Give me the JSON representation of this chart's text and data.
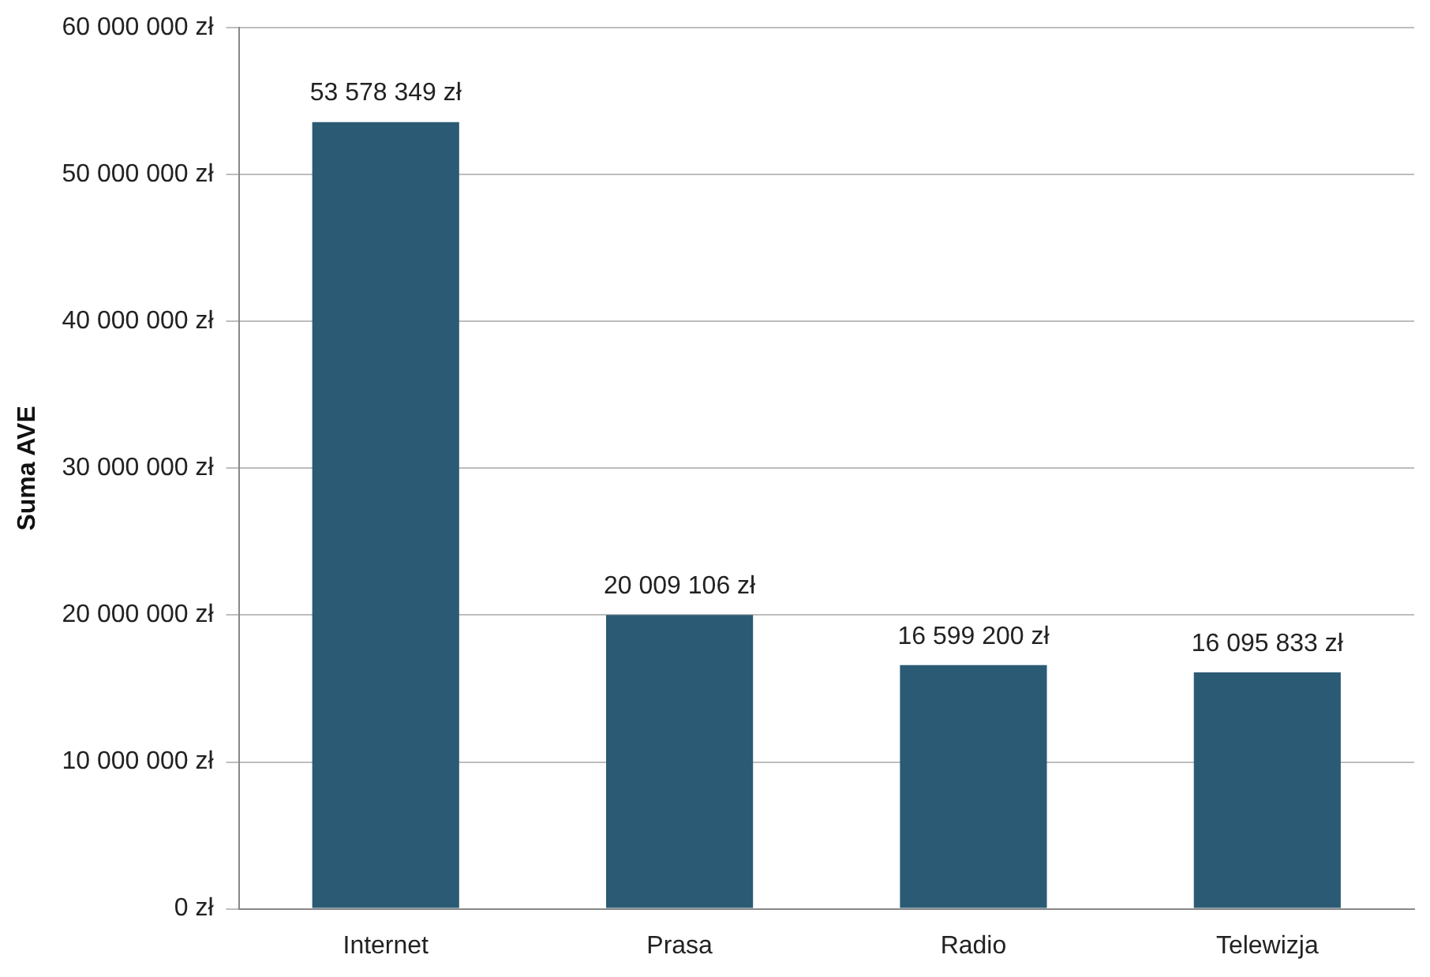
{
  "chart_data": {
    "type": "bar",
    "ylabel": "Suma AVE",
    "categories": [
      "Internet",
      "Prasa",
      "Radio",
      "Telewizja"
    ],
    "values": [
      53578349,
      20009106,
      16599200,
      16095833
    ],
    "value_labels": [
      "53 578 349 zł",
      "20 009 106 zł",
      "16 599 200 zł",
      "16 095 833 zł"
    ],
    "color": "#2b5b74",
    "ylim": [
      0,
      60000000
    ],
    "yticks": [
      {
        "value": 0,
        "label": "0 zł"
      },
      {
        "value": 10000000,
        "label": "10 000 000 zł"
      },
      {
        "value": 20000000,
        "label": "20 000 000 zł"
      },
      {
        "value": 30000000,
        "label": "30 000 000 zł"
      },
      {
        "value": 40000000,
        "label": "40 000 000 zł"
      },
      {
        "value": 50000000,
        "label": "50 000 000 zł"
      },
      {
        "value": 60000000,
        "label": "60 000 000 zł"
      }
    ],
    "grid": "y",
    "legend": false
  }
}
